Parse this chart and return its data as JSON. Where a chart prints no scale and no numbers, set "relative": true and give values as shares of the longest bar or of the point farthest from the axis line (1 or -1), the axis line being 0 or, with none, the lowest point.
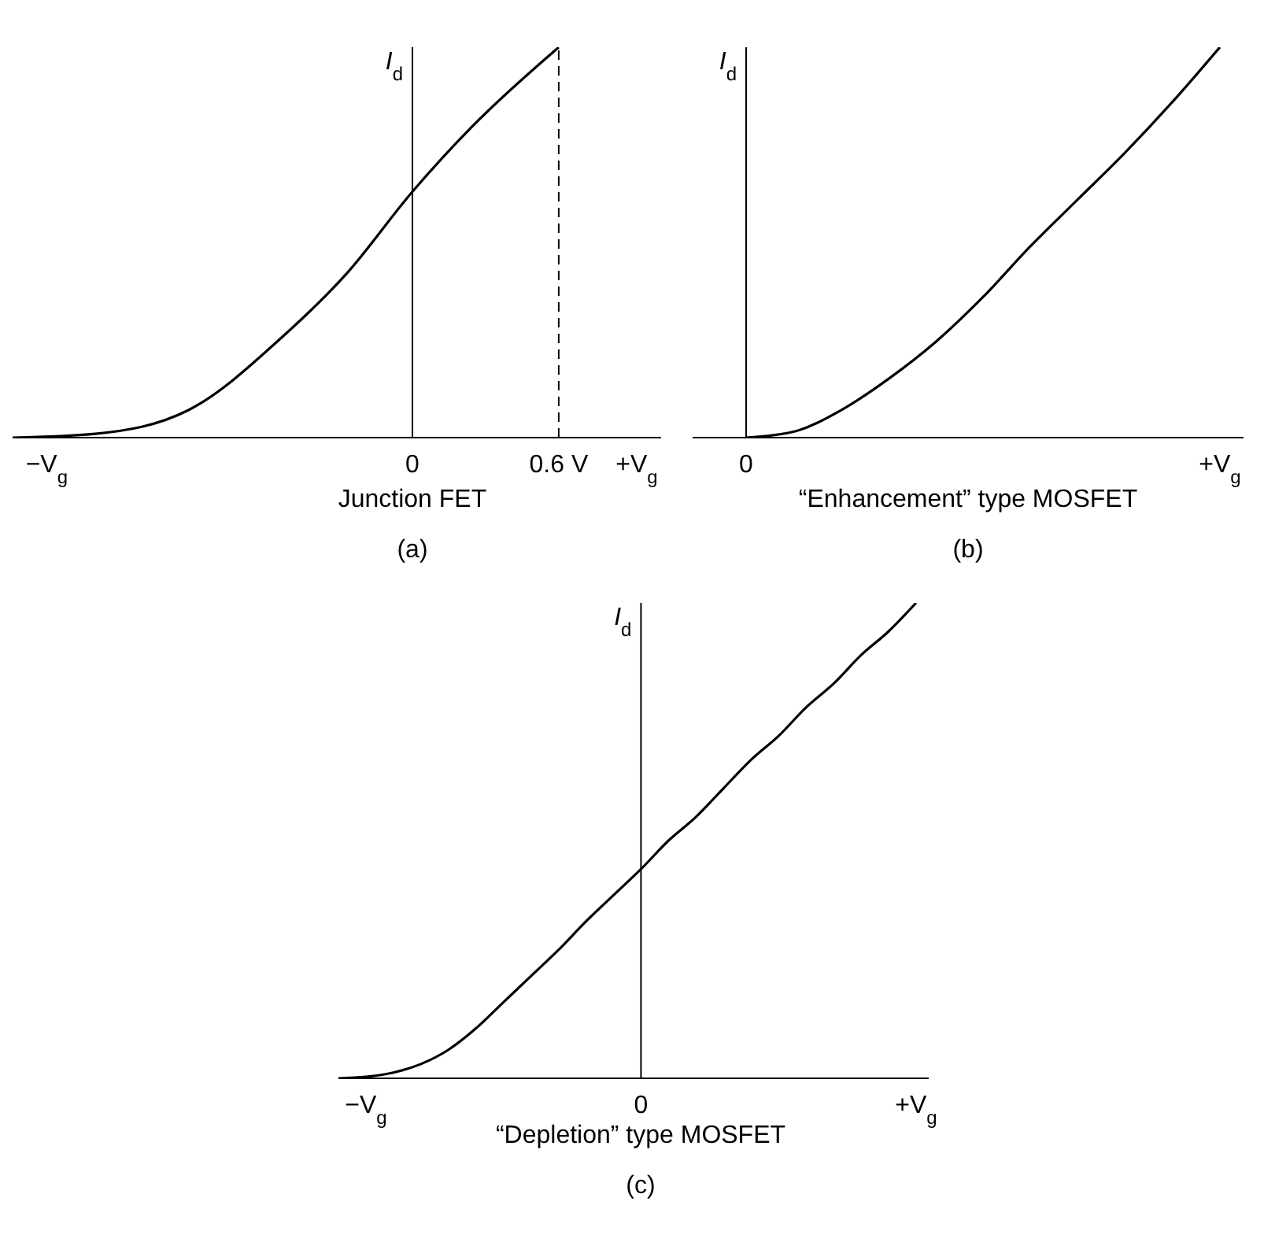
{
  "chart_data": [
    {
      "type": "line",
      "relative": true,
      "color": "#000000",
      "x": [
        -1.64,
        -1.3,
        -0.92,
        -0.53,
        -0.27,
        0,
        0.25,
        0.6
      ],
      "values": [
        0,
        0.01,
        0.07,
        0.26,
        0.42,
        0.63,
        0.8,
        1
      ],
      "xlim": [
        -1.64,
        1.02
      ],
      "xticks": [
        {
          "value": -1.5,
          "label": "−V$_{g}$"
        },
        0,
        {
          "value": 0.6,
          "label": "0.6 V"
        },
        {
          "value": 0.92,
          "label": "+V$_{g}$"
        }
      ],
      "ylabel": "I$_{d}$",
      "xlabel": "Junction FET",
      "annotations": [
        "(a)"
      ],
      "ref_lines": [
        {
          "axis": "x",
          "value": 0.6,
          "line_style": "dashed",
          "color": "#000000"
        }
      ]
    },
    {
      "type": "line",
      "relative": true,
      "color": "#000000",
      "categories": [
        "0",
        null,
        null,
        null,
        null,
        null,
        null,
        null,
        null,
        null,
        "+V$_{g}$"
      ],
      "values": [
        0,
        0.015,
        0.07,
        0.15,
        0.245,
        0.36,
        0.49,
        0.61,
        0.73,
        0.86,
        1
      ],
      "ylabel": "I$_{d}$",
      "xlabel": "“Enhancement” type MOSFET",
      "annotations": [
        "(b)"
      ]
    },
    {
      "type": "line",
      "relative": true,
      "color": "#000000",
      "categories": [
        null,
        "−V$_{g}$",
        null,
        null,
        null,
        null,
        null,
        null,
        null,
        null,
        null,
        "0",
        null,
        null,
        null,
        null,
        null,
        null,
        null,
        null,
        null,
        "+V$_{g}$"
      ],
      "values": [
        0,
        0.003,
        0.012,
        0.03,
        0.06,
        0.105,
        0.16,
        0.215,
        0.27,
        0.33,
        0.385,
        0.44,
        0.5,
        0.55,
        0.61,
        0.67,
        0.72,
        0.78,
        0.83,
        0.89,
        0.94,
        1
      ],
      "ylabel": "I$_{d}$",
      "xlabel": "“Depletion” type MOSFET",
      "annotations": [
        "(c)"
      ]
    }
  ]
}
